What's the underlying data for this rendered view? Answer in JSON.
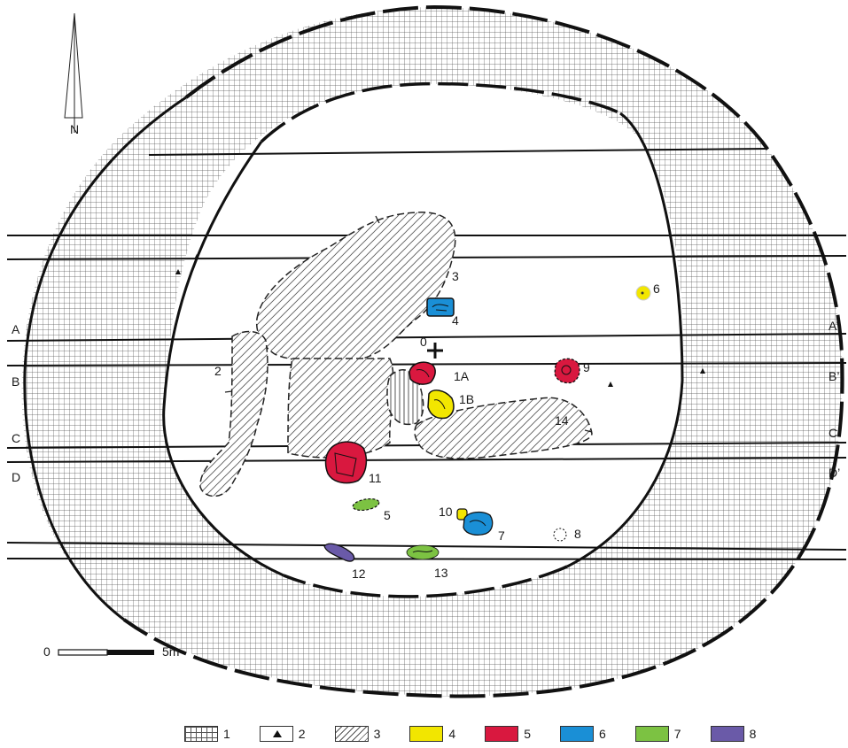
{
  "north_label": "N",
  "section_labels": {
    "a_left": "A",
    "a_right": "A’",
    "b_left": "B",
    "b_right": "B’",
    "c_left": "C",
    "c_right": "C’",
    "d_left": "D",
    "d_right": "D’"
  },
  "feature_labels": {
    "f0": "0",
    "f1a": "1A",
    "f1b": "1B",
    "f2": "2",
    "f3": "3",
    "f4": "4",
    "f5": "5",
    "f6": "6",
    "f7": "7",
    "f8": "8",
    "f9": "9",
    "f10": "10",
    "f11": "11",
    "f12": "12",
    "f13": "13",
    "f14": "14"
  },
  "scale": {
    "start": "0",
    "end": "5m"
  },
  "legend": [
    {
      "num": "1",
      "kind": "grid"
    },
    {
      "num": "2",
      "kind": "triangle"
    },
    {
      "num": "3",
      "kind": "hatch"
    },
    {
      "num": "4",
      "kind": "color",
      "color": "#f2e600"
    },
    {
      "num": "5",
      "kind": "color",
      "color": "#d9183f"
    },
    {
      "num": "6",
      "kind": "color",
      "color": "#1a8fd6"
    },
    {
      "num": "7",
      "kind": "color",
      "color": "#7cc242"
    },
    {
      "num": "8",
      "kind": "color",
      "color": "#6a5aa8"
    }
  ],
  "colors": {
    "yellow": "#f2e600",
    "red": "#d9183f",
    "blue": "#1a8fd6",
    "green": "#7cc242",
    "purple": "#6a5aa8"
  }
}
